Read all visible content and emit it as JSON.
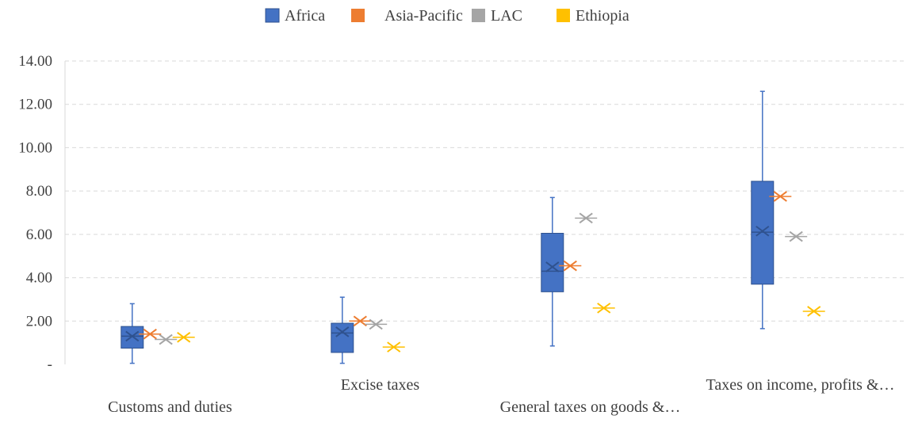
{
  "chart_data": {
    "type": "box",
    "title": "",
    "xlabel": "",
    "ylabel": "",
    "ylim": [
      0,
      14
    ],
    "yticks": [
      "-",
      "2.00",
      "4.00",
      "6.00",
      "8.00",
      "10.00",
      "12.00",
      "14.00"
    ],
    "grid": true,
    "legend_position": "top",
    "categories": [
      "Customs and duties",
      "Excise taxes",
      "General taxes on goods &…",
      "Taxes on income, profits &…"
    ],
    "series": [
      {
        "name": "Africa",
        "color": "#4472c4",
        "kind": "box",
        "boxes": [
          {
            "min": 0.05,
            "q1": 0.75,
            "median": 1.3,
            "q3": 1.75,
            "max": 2.8,
            "mean": 1.3
          },
          {
            "min": 0.05,
            "q1": 0.55,
            "median": 1.45,
            "q3": 1.9,
            "max": 3.1,
            "mean": 1.5
          },
          {
            "min": 0.85,
            "q1": 3.35,
            "median": 4.3,
            "q3": 6.05,
            "max": 7.7,
            "mean": 4.5
          },
          {
            "min": 1.65,
            "q1": 3.7,
            "median": 6.1,
            "q3": 8.45,
            "max": 12.6,
            "mean": 6.15
          }
        ]
      },
      {
        "name": "Asia-Pacific",
        "color": "#ed7d31",
        "kind": "point",
        "values": [
          1.4,
          2.0,
          4.55,
          7.75
        ]
      },
      {
        "name": "LAC",
        "color": "#a5a5a5",
        "kind": "point",
        "values": [
          1.15,
          1.85,
          6.75,
          5.9
        ]
      },
      {
        "name": "Ethiopia",
        "color": "#ffc000",
        "kind": "point",
        "values": [
          1.25,
          0.8,
          2.6,
          2.45
        ]
      }
    ]
  }
}
